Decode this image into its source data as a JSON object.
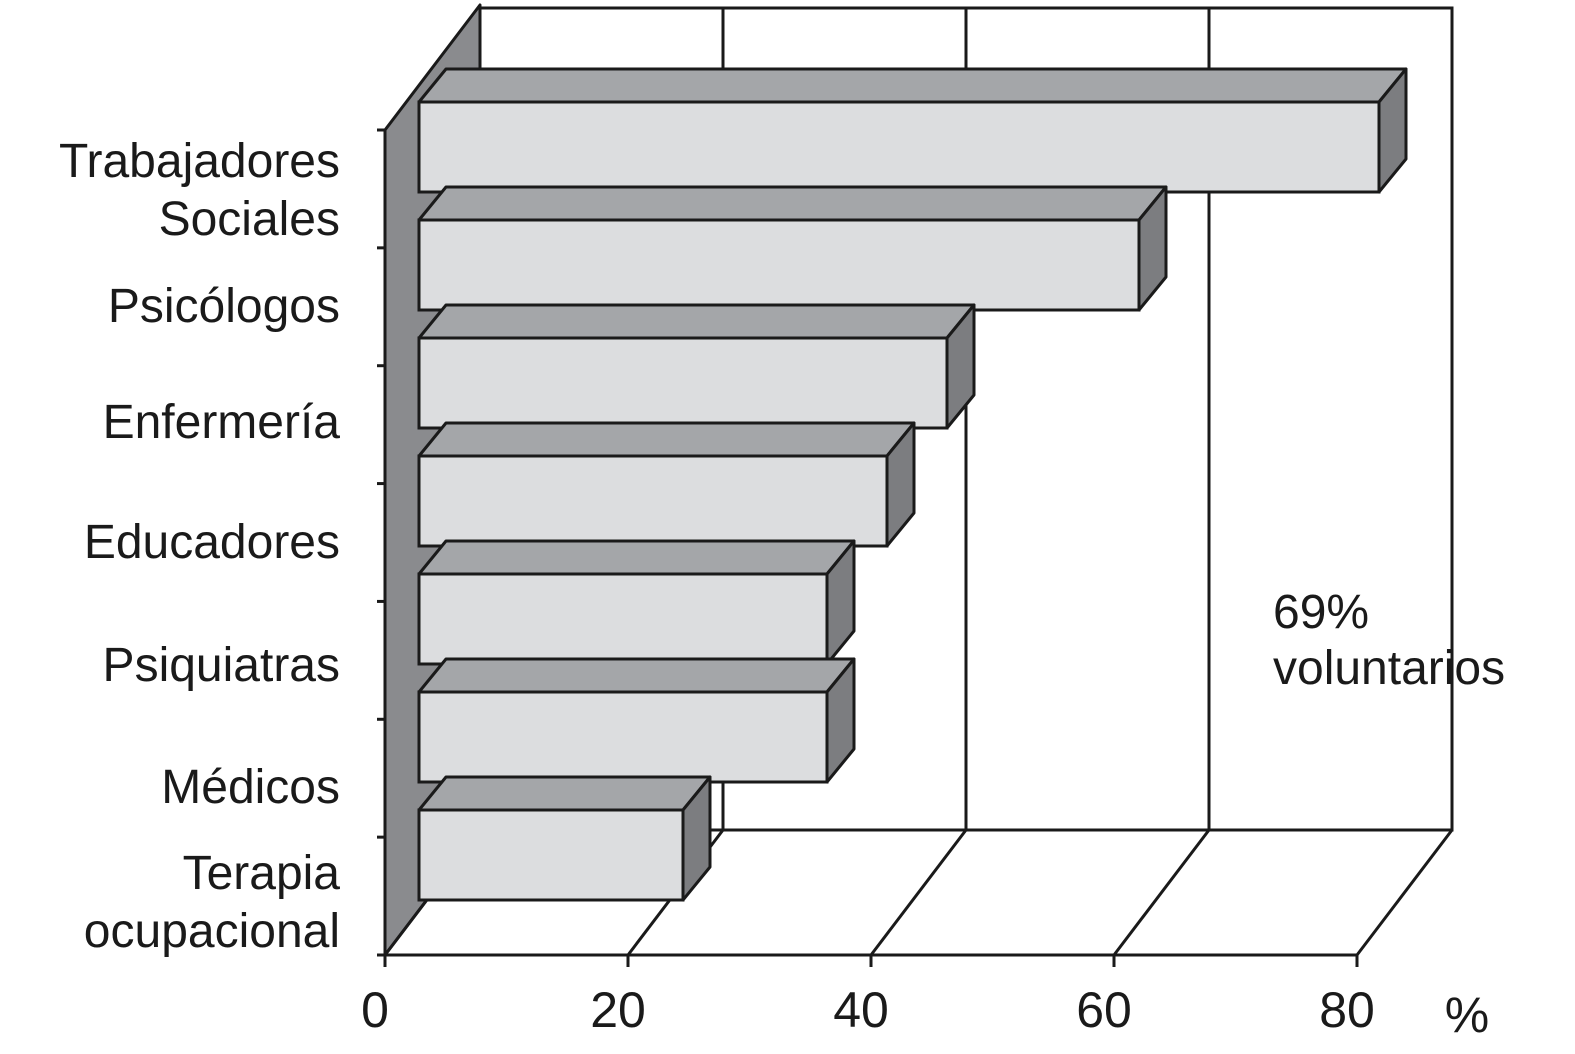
{
  "chart_data": {
    "type": "bar",
    "orientation": "horizontal",
    "style": "3d",
    "categories": [
      [
        "Trabajadores",
        "Sociales"
      ],
      [
        "Psicólogos"
      ],
      [
        "Enfermería"
      ],
      [
        "Educadores"
      ],
      [
        "Psiquiatras"
      ],
      [
        "Médicos"
      ],
      [
        "Terapia",
        "ocupacional"
      ]
    ],
    "values": [
      80,
      60,
      44,
      39,
      34,
      34,
      22
    ],
    "xlim": [
      0,
      80
    ],
    "xticks": [
      "0",
      "20",
      "40",
      "60",
      "80"
    ],
    "xunit": "%",
    "annotation": [
      "69%",
      "voluntarios"
    ],
    "grid": true,
    "colors": {
      "bar_front": "#dcdddf",
      "bar_top": "#a4a6a9",
      "bar_side": "#7c7d80",
      "wall": "#8a8b8e",
      "line": "#1a1a1a"
    }
  }
}
